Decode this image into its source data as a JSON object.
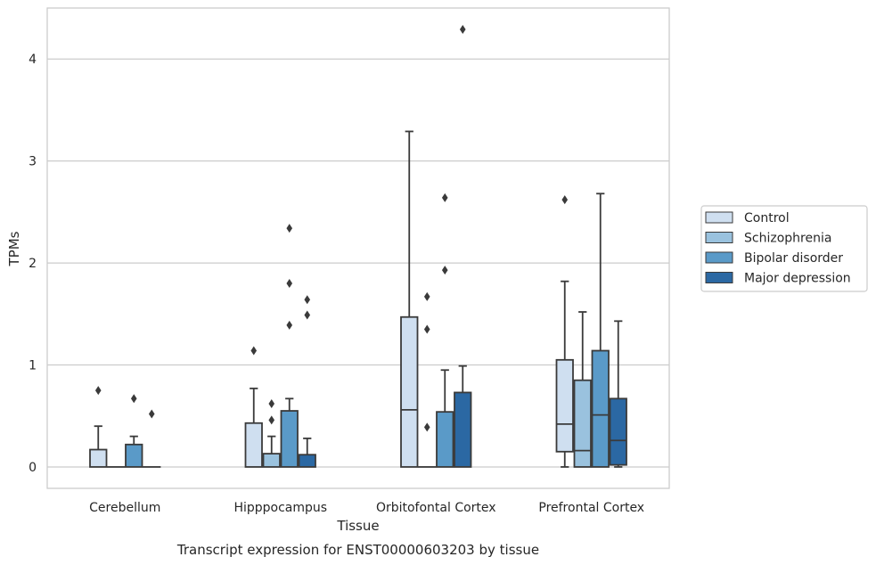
{
  "chart_data": {
    "type": "box",
    "caption": "Transcript expression for ENST00000603203 by tissue",
    "xlabel": "Tissue",
    "ylabel": "TPMs",
    "ylim": [
      -0.21,
      4.5
    ],
    "yticks": [
      0,
      1,
      2,
      3,
      4
    ],
    "grid": "horizontal",
    "legend_position": "right",
    "categories": [
      "Cerebellum",
      "Hipppocampus",
      "Orbitofontal Cortex",
      "Prefrontal Cortex"
    ],
    "series": [
      {
        "name": "Control",
        "color": "#cfdff0",
        "boxes": [
          {
            "whislo": 0,
            "q1": 0,
            "med": 0,
            "q3": 0.17,
            "whishi": 0.4,
            "fliers": [
              0.75
            ]
          },
          {
            "whislo": 0,
            "q1": 0,
            "med": 0,
            "q3": 0.43,
            "whishi": 0.77,
            "fliers": [
              1.14
            ]
          },
          {
            "whislo": 0,
            "q1": 0,
            "med": 0.56,
            "q3": 1.47,
            "whishi": 3.29,
            "fliers": []
          },
          {
            "whislo": 0,
            "q1": 0.15,
            "med": 0.42,
            "q3": 1.05,
            "whishi": 1.82,
            "fliers": [
              2.62
            ]
          }
        ]
      },
      {
        "name": "Schizophrenia",
        "color": "#9ac2de",
        "boxes": [
          {
            "whislo": 0,
            "q1": 0,
            "med": 0,
            "q3": 0,
            "whishi": 0,
            "fliers": []
          },
          {
            "whislo": 0,
            "q1": 0,
            "med": 0,
            "q3": 0.13,
            "whishi": 0.3,
            "fliers": [
              0.46,
              0.62
            ]
          },
          {
            "whislo": 0,
            "q1": 0,
            "med": 0,
            "q3": 0,
            "whishi": 0,
            "fliers": [
              0.39,
              1.35,
              1.67
            ]
          },
          {
            "whislo": 0,
            "q1": 0,
            "med": 0.16,
            "q3": 0.85,
            "whishi": 1.52,
            "fliers": []
          }
        ]
      },
      {
        "name": "Bipolar disorder",
        "color": "#5a9ac8",
        "boxes": [
          {
            "whislo": 0,
            "q1": 0,
            "med": 0,
            "q3": 0.22,
            "whishi": 0.3,
            "fliers": [
              0.67
            ]
          },
          {
            "whislo": 0,
            "q1": 0,
            "med": 0,
            "q3": 0.55,
            "whishi": 0.67,
            "fliers": [
              1.39,
              1.8,
              2.34
            ]
          },
          {
            "whislo": 0,
            "q1": 0,
            "med": 0,
            "q3": 0.54,
            "whishi": 0.95,
            "fliers": [
              1.93,
              2.64
            ]
          },
          {
            "whislo": 0,
            "q1": 0,
            "med": 0.51,
            "q3": 1.14,
            "whishi": 2.68,
            "fliers": []
          }
        ]
      },
      {
        "name": "Major depression",
        "color": "#2b68a3",
        "boxes": [
          {
            "whislo": 0,
            "q1": 0,
            "med": 0,
            "q3": 0,
            "whishi": 0,
            "fliers": [
              0.52
            ]
          },
          {
            "whislo": 0,
            "q1": 0,
            "med": 0,
            "q3": 0.12,
            "whishi": 0.28,
            "fliers": [
              1.49,
              1.64
            ]
          },
          {
            "whislo": 0,
            "q1": 0,
            "med": 0,
            "q3": 0.73,
            "whishi": 0.99,
            "fliers": [
              4.29
            ]
          },
          {
            "whislo": 0,
            "q1": 0.02,
            "med": 0.26,
            "q3": 0.67,
            "whishi": 1.43,
            "fliers": []
          }
        ]
      }
    ]
  }
}
